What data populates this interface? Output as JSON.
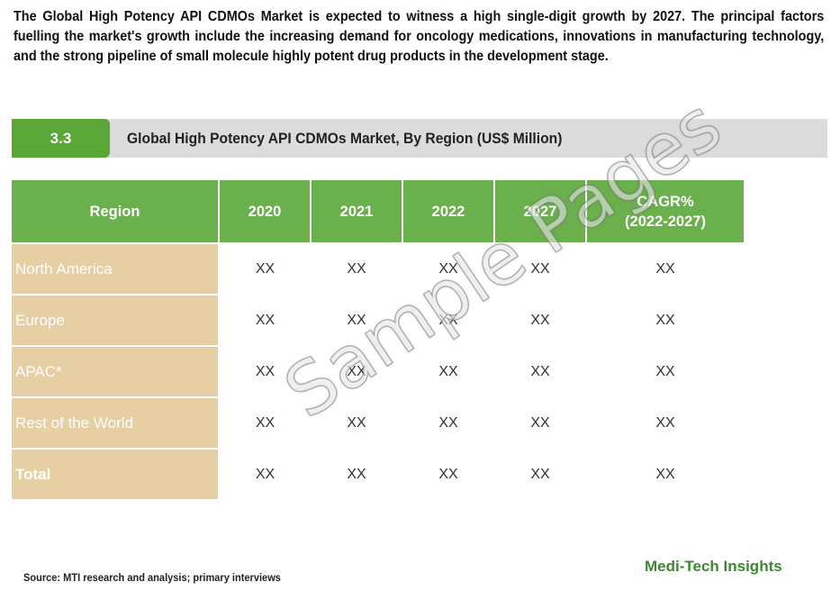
{
  "intro_text": "The Global High Potency API CDMOs Market is expected to witness a high single-digit growth by 2027. The principal factors fuelling the market's growth include the increasing demand for oncology medications, innovations in manufacturing technology, and the strong pipeline of small molecule highly potent drug products in the development stage.",
  "section": {
    "number": "3.3",
    "title": "Global High Potency API CDMOs Market, By Region (US$ Million)"
  },
  "table": {
    "headers": [
      "Region",
      "2020",
      "2021",
      "2022",
      "2027",
      "CAGR%",
      "(2022-2027)"
    ],
    "rows": [
      {
        "region": "North America",
        "values": [
          "XX",
          "XX",
          "XX",
          "XX",
          "XX"
        ]
      },
      {
        "region": "Europe",
        "values": [
          "XX",
          "XX",
          "XX",
          "XX",
          "XX"
        ]
      },
      {
        "region": "APAC*",
        "values": [
          "XX",
          "XX",
          "XX",
          "XX",
          "XX"
        ]
      },
      {
        "region": "Rest of the World",
        "values": [
          "XX",
          "XX",
          "XX",
          "XX",
          "XX"
        ]
      },
      {
        "region": "Total",
        "values": [
          "XX",
          "XX",
          "XX",
          "XX",
          "XX"
        ]
      }
    ]
  },
  "watermark": "Sample Pages",
  "source": "Source: MTI research and analysis; primary interviews",
  "brand": "Medi-Tech Insights",
  "colors": {
    "header_green": "#6ab04c",
    "section_green": "#5aa637",
    "region_tan": "#e6cfa3",
    "brand_green": "#3b8a2e"
  }
}
